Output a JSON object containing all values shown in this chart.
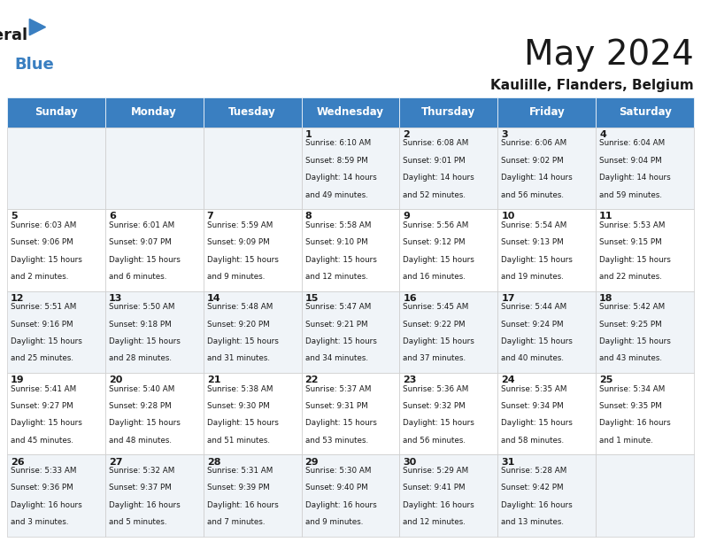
{
  "title": "May 2024",
  "subtitle": "Kaulille, Flanders, Belgium",
  "header_color": "#3a7fc1",
  "header_text_color": "#ffffff",
  "cell_bg_even": "#f0f4f8",
  "cell_bg_odd": "#ffffff",
  "days_of_week": [
    "Sunday",
    "Monday",
    "Tuesday",
    "Wednesday",
    "Thursday",
    "Friday",
    "Saturday"
  ],
  "weeks": [
    [
      {
        "day": "",
        "sunrise": "",
        "sunset": "",
        "daylight": ""
      },
      {
        "day": "",
        "sunrise": "",
        "sunset": "",
        "daylight": ""
      },
      {
        "day": "",
        "sunrise": "",
        "sunset": "",
        "daylight": ""
      },
      {
        "day": "1",
        "sunrise": "6:10 AM",
        "sunset": "8:59 PM",
        "daylight": "14 hours and 49 minutes."
      },
      {
        "day": "2",
        "sunrise": "6:08 AM",
        "sunset": "9:01 PM",
        "daylight": "14 hours and 52 minutes."
      },
      {
        "day": "3",
        "sunrise": "6:06 AM",
        "sunset": "9:02 PM",
        "daylight": "14 hours and 56 minutes."
      },
      {
        "day": "4",
        "sunrise": "6:04 AM",
        "sunset": "9:04 PM",
        "daylight": "14 hours and 59 minutes."
      }
    ],
    [
      {
        "day": "5",
        "sunrise": "6:03 AM",
        "sunset": "9:06 PM",
        "daylight": "15 hours and 2 minutes."
      },
      {
        "day": "6",
        "sunrise": "6:01 AM",
        "sunset": "9:07 PM",
        "daylight": "15 hours and 6 minutes."
      },
      {
        "day": "7",
        "sunrise": "5:59 AM",
        "sunset": "9:09 PM",
        "daylight": "15 hours and 9 minutes."
      },
      {
        "day": "8",
        "sunrise": "5:58 AM",
        "sunset": "9:10 PM",
        "daylight": "15 hours and 12 minutes."
      },
      {
        "day": "9",
        "sunrise": "5:56 AM",
        "sunset": "9:12 PM",
        "daylight": "15 hours and 16 minutes."
      },
      {
        "day": "10",
        "sunrise": "5:54 AM",
        "sunset": "9:13 PM",
        "daylight": "15 hours and 19 minutes."
      },
      {
        "day": "11",
        "sunrise": "5:53 AM",
        "sunset": "9:15 PM",
        "daylight": "15 hours and 22 minutes."
      }
    ],
    [
      {
        "day": "12",
        "sunrise": "5:51 AM",
        "sunset": "9:16 PM",
        "daylight": "15 hours and 25 minutes."
      },
      {
        "day": "13",
        "sunrise": "5:50 AM",
        "sunset": "9:18 PM",
        "daylight": "15 hours and 28 minutes."
      },
      {
        "day": "14",
        "sunrise": "5:48 AM",
        "sunset": "9:20 PM",
        "daylight": "15 hours and 31 minutes."
      },
      {
        "day": "15",
        "sunrise": "5:47 AM",
        "sunset": "9:21 PM",
        "daylight": "15 hours and 34 minutes."
      },
      {
        "day": "16",
        "sunrise": "5:45 AM",
        "sunset": "9:22 PM",
        "daylight": "15 hours and 37 minutes."
      },
      {
        "day": "17",
        "sunrise": "5:44 AM",
        "sunset": "9:24 PM",
        "daylight": "15 hours and 40 minutes."
      },
      {
        "day": "18",
        "sunrise": "5:42 AM",
        "sunset": "9:25 PM",
        "daylight": "15 hours and 43 minutes."
      }
    ],
    [
      {
        "day": "19",
        "sunrise": "5:41 AM",
        "sunset": "9:27 PM",
        "daylight": "15 hours and 45 minutes."
      },
      {
        "day": "20",
        "sunrise": "5:40 AM",
        "sunset": "9:28 PM",
        "daylight": "15 hours and 48 minutes."
      },
      {
        "day": "21",
        "sunrise": "5:38 AM",
        "sunset": "9:30 PM",
        "daylight": "15 hours and 51 minutes."
      },
      {
        "day": "22",
        "sunrise": "5:37 AM",
        "sunset": "9:31 PM",
        "daylight": "15 hours and 53 minutes."
      },
      {
        "day": "23",
        "sunrise": "5:36 AM",
        "sunset": "9:32 PM",
        "daylight": "15 hours and 56 minutes."
      },
      {
        "day": "24",
        "sunrise": "5:35 AM",
        "sunset": "9:34 PM",
        "daylight": "15 hours and 58 minutes."
      },
      {
        "day": "25",
        "sunrise": "5:34 AM",
        "sunset": "9:35 PM",
        "daylight": "16 hours and 1 minute."
      }
    ],
    [
      {
        "day": "26",
        "sunrise": "5:33 AM",
        "sunset": "9:36 PM",
        "daylight": "16 hours and 3 minutes."
      },
      {
        "day": "27",
        "sunrise": "5:32 AM",
        "sunset": "9:37 PM",
        "daylight": "16 hours and 5 minutes."
      },
      {
        "day": "28",
        "sunrise": "5:31 AM",
        "sunset": "9:39 PM",
        "daylight": "16 hours and 7 minutes."
      },
      {
        "day": "29",
        "sunrise": "5:30 AM",
        "sunset": "9:40 PM",
        "daylight": "16 hours and 9 minutes."
      },
      {
        "day": "30",
        "sunrise": "5:29 AM",
        "sunset": "9:41 PM",
        "daylight": "16 hours and 12 minutes."
      },
      {
        "day": "31",
        "sunrise": "5:28 AM",
        "sunset": "9:42 PM",
        "daylight": "16 hours and 13 minutes."
      },
      {
        "day": "",
        "sunrise": "",
        "sunset": "",
        "daylight": ""
      }
    ]
  ]
}
